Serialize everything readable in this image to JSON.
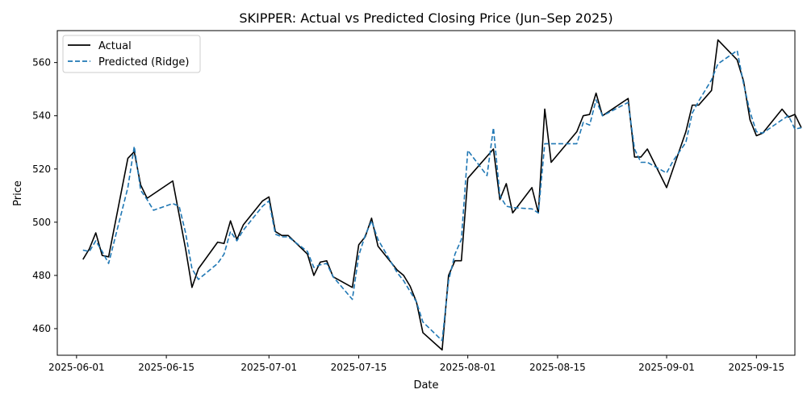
{
  "chart_data": {
    "type": "line",
    "title": "SKIPPER: Actual vs Predicted Closing Price (Jun–Sep 2025)",
    "xlabel": "Date",
    "ylabel": "Price",
    "x_axis_type": "date",
    "xlim": [
      "2025-05-29",
      "2025-09-21"
    ],
    "ylim": [
      450,
      572
    ],
    "x_ticks": [
      "2025-06-01",
      "2025-06-15",
      "2025-07-01",
      "2025-07-15",
      "2025-08-01",
      "2025-08-15",
      "2025-09-01",
      "2025-09-15"
    ],
    "y_ticks": [
      460,
      480,
      500,
      520,
      540,
      560
    ],
    "grid": false,
    "legend": {
      "position": "upper-left"
    },
    "series": [
      {
        "name": "Actual",
        "color": "#000000",
        "style": "solid",
        "points": [
          [
            "2025-06-02",
            486
          ],
          [
            "2025-06-03",
            490
          ],
          [
            "2025-06-04",
            496
          ],
          [
            "2025-06-05",
            487.5
          ],
          [
            "2025-06-06",
            487
          ],
          [
            "2025-06-09",
            524
          ],
          [
            "2025-06-10",
            526.5
          ],
          [
            "2025-06-11",
            514
          ],
          [
            "2025-06-12",
            509
          ],
          [
            "2025-06-16",
            515.5
          ],
          [
            "2025-06-18",
            490
          ],
          [
            "2025-06-19",
            475.5
          ],
          [
            "2025-06-20",
            482.5
          ],
          [
            "2025-06-23",
            492.5
          ],
          [
            "2025-06-24",
            492
          ],
          [
            "2025-06-25",
            500.5
          ],
          [
            "2025-06-26",
            493.5
          ],
          [
            "2025-06-27",
            499
          ],
          [
            "2025-06-30",
            508
          ],
          [
            "2025-07-01",
            509.5
          ],
          [
            "2025-07-02",
            496.5
          ],
          [
            "2025-07-03",
            495
          ],
          [
            "2025-07-04",
            495
          ],
          [
            "2025-07-07",
            488
          ],
          [
            "2025-07-08",
            480
          ],
          [
            "2025-07-09",
            485
          ],
          [
            "2025-07-10",
            485.5
          ],
          [
            "2025-07-11",
            479.5
          ],
          [
            "2025-07-14",
            475.5
          ],
          [
            "2025-07-15",
            491.5
          ],
          [
            "2025-07-16",
            494.5
          ],
          [
            "2025-07-17",
            501.5
          ],
          [
            "2025-07-18",
            491
          ],
          [
            "2025-07-21",
            482
          ],
          [
            "2025-07-22",
            480
          ],
          [
            "2025-07-23",
            476
          ],
          [
            "2025-07-24",
            470
          ],
          [
            "2025-07-25",
            458.5
          ],
          [
            "2025-07-28",
            452
          ],
          [
            "2025-07-29",
            480
          ],
          [
            "2025-07-30",
            485.5
          ],
          [
            "2025-07-31",
            485.5
          ],
          [
            "2025-08-01",
            516.5
          ],
          [
            "2025-08-05",
            527.5
          ],
          [
            "2025-08-06",
            508.5
          ],
          [
            "2025-08-07",
            514.5
          ],
          [
            "2025-08-08",
            503.5
          ],
          [
            "2025-08-11",
            513
          ],
          [
            "2025-08-12",
            503.5
          ],
          [
            "2025-08-13",
            542.5
          ],
          [
            "2025-08-14",
            522.5
          ],
          [
            "2025-08-18",
            534
          ],
          [
            "2025-08-19",
            540
          ],
          [
            "2025-08-20",
            540.5
          ],
          [
            "2025-08-21",
            548.5
          ],
          [
            "2025-08-22",
            540
          ],
          [
            "2025-08-26",
            546.5
          ],
          [
            "2025-08-27",
            524.5
          ],
          [
            "2025-08-28",
            524.5
          ],
          [
            "2025-08-29",
            527.5
          ],
          [
            "2025-09-01",
            513
          ],
          [
            "2025-09-02",
            520
          ],
          [
            "2025-09-04",
            534
          ],
          [
            "2025-09-05",
            544
          ],
          [
            "2025-09-06",
            544
          ],
          [
            "2025-09-08",
            549.5
          ],
          [
            "2025-09-09",
            568.5
          ],
          [
            "2025-09-12",
            561
          ],
          [
            "2025-09-13",
            553
          ],
          [
            "2025-09-14",
            538.5
          ],
          [
            "2025-09-15",
            532.5
          ],
          [
            "2025-09-16",
            533.5
          ],
          [
            "2025-09-19",
            542.5
          ],
          [
            "2025-09-20",
            539.5
          ],
          [
            "2025-09-21",
            540.5
          ],
          [
            "2025-09-22",
            535.5
          ]
        ]
      },
      {
        "name": "Predicted (Ridge)",
        "color": "#1f77b4",
        "style": "dashed",
        "points": [
          [
            "2025-06-02",
            489.5
          ],
          [
            "2025-06-03",
            489
          ],
          [
            "2025-06-04",
            493
          ],
          [
            "2025-06-05",
            489
          ],
          [
            "2025-06-06",
            484.5
          ],
          [
            "2025-06-09",
            513
          ],
          [
            "2025-06-10",
            528.5
          ],
          [
            "2025-06-11",
            512
          ],
          [
            "2025-06-12",
            508.5
          ],
          [
            "2025-06-13",
            504.5
          ],
          [
            "2025-06-16",
            507
          ],
          [
            "2025-06-17",
            506
          ],
          [
            "2025-06-18",
            496
          ],
          [
            "2025-06-19",
            482.5
          ],
          [
            "2025-06-20",
            478.5
          ],
          [
            "2025-06-23",
            484.5
          ],
          [
            "2025-06-24",
            488
          ],
          [
            "2025-06-25",
            496.5
          ],
          [
            "2025-06-26",
            493
          ],
          [
            "2025-06-27",
            497
          ],
          [
            "2025-06-30",
            506
          ],
          [
            "2025-07-01",
            508
          ],
          [
            "2025-07-02",
            495.5
          ],
          [
            "2025-07-03",
            494.5
          ],
          [
            "2025-07-04",
            494.5
          ],
          [
            "2025-07-07",
            489
          ],
          [
            "2025-07-08",
            483
          ],
          [
            "2025-07-09",
            484
          ],
          [
            "2025-07-10",
            484.5
          ],
          [
            "2025-07-11",
            479.5
          ],
          [
            "2025-07-14",
            471
          ],
          [
            "2025-07-15",
            487.5
          ],
          [
            "2025-07-16",
            495
          ],
          [
            "2025-07-17",
            500.5
          ],
          [
            "2025-07-18",
            493.5
          ],
          [
            "2025-07-21",
            481
          ],
          [
            "2025-07-22",
            478
          ],
          [
            "2025-07-23",
            474
          ],
          [
            "2025-07-24",
            470
          ],
          [
            "2025-07-25",
            462.5
          ],
          [
            "2025-07-28",
            455.5
          ],
          [
            "2025-07-29",
            478
          ],
          [
            "2025-07-30",
            488
          ],
          [
            "2025-07-31",
            493.5
          ],
          [
            "2025-08-01",
            527
          ],
          [
            "2025-08-04",
            517.5
          ],
          [
            "2025-08-05",
            535.5
          ],
          [
            "2025-08-06",
            510
          ],
          [
            "2025-08-07",
            506
          ],
          [
            "2025-08-08",
            505.5
          ],
          [
            "2025-08-11",
            505
          ],
          [
            "2025-08-12",
            503.5
          ],
          [
            "2025-08-13",
            529.5
          ],
          [
            "2025-08-14",
            529.5
          ],
          [
            "2025-08-18",
            529.5
          ],
          [
            "2025-08-19",
            537.5
          ],
          [
            "2025-08-20",
            536.5
          ],
          [
            "2025-08-21",
            546
          ],
          [
            "2025-08-22",
            540
          ],
          [
            "2025-08-26",
            545
          ],
          [
            "2025-08-27",
            527.5
          ],
          [
            "2025-08-28",
            522.5
          ],
          [
            "2025-08-29",
            522.5
          ],
          [
            "2025-09-01",
            518.5
          ],
          [
            "2025-09-02",
            523
          ],
          [
            "2025-09-04",
            530
          ],
          [
            "2025-09-05",
            541
          ],
          [
            "2025-09-06",
            545.5
          ],
          [
            "2025-09-08",
            553.5
          ],
          [
            "2025-09-09",
            559.5
          ],
          [
            "2025-09-12",
            564.5
          ],
          [
            "2025-09-13",
            552
          ],
          [
            "2025-09-14",
            541.5
          ],
          [
            "2025-09-15",
            534
          ],
          [
            "2025-09-16",
            533.5
          ],
          [
            "2025-09-19",
            538.5
          ],
          [
            "2025-09-20",
            540
          ],
          [
            "2025-09-21",
            535
          ],
          [
            "2025-09-22",
            535.5
          ]
        ]
      }
    ]
  }
}
